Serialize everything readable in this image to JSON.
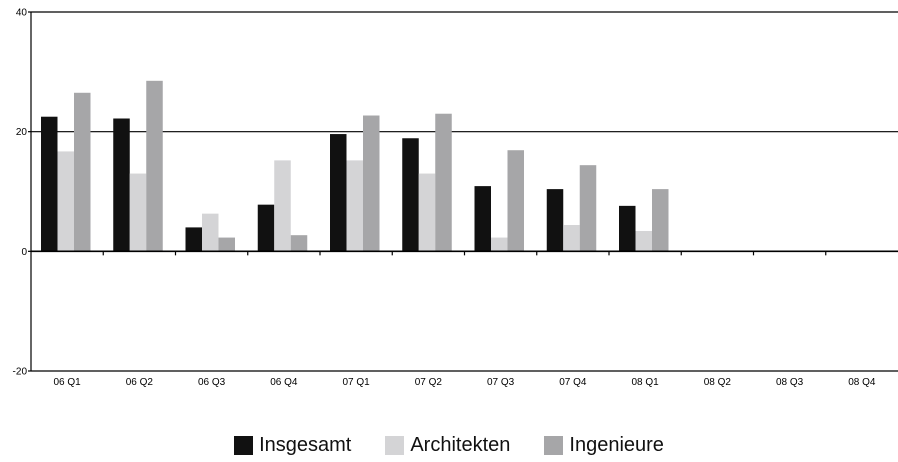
{
  "chart_data": {
    "type": "bar",
    "title": "",
    "xlabel": "",
    "ylabel": "",
    "ylim": [
      -20,
      40
    ],
    "yticks": [
      -20,
      0,
      20,
      40
    ],
    "categories": [
      "06 Q1",
      "06 Q2",
      "06 Q3",
      "06 Q4",
      "07 Q1",
      "07 Q2",
      "07 Q3",
      "07 Q4",
      "08 Q1",
      "08 Q2",
      "08 Q3",
      "08 Q4"
    ],
    "series": [
      {
        "name": "Insgesamt",
        "color": "#111111",
        "values": [
          22.5,
          22.2,
          4.0,
          7.8,
          19.6,
          18.9,
          10.9,
          10.4,
          7.6,
          null,
          null,
          null
        ]
      },
      {
        "name": "Architekten",
        "color": "#d4d4d6",
        "values": [
          16.7,
          13.0,
          6.3,
          15.2,
          15.2,
          13.0,
          2.3,
          4.4,
          3.4,
          null,
          null,
          null
        ]
      },
      {
        "name": "Ingenieure",
        "color": "#a6a6a8",
        "values": [
          26.5,
          28.5,
          2.3,
          2.7,
          22.7,
          23.0,
          16.9,
          14.4,
          10.4,
          null,
          null,
          null
        ]
      }
    ],
    "gridlines": [
      20,
      40
    ],
    "legend_position": "bottom"
  }
}
